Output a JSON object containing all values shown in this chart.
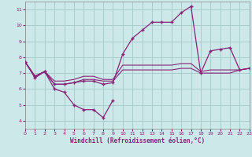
{
  "bg_color": "#cce8e8",
  "grid_color": "#aacccc",
  "line_color": "#882277",
  "xlabel": "Windchill (Refroidissement éolien,°C)",
  "xlim": [
    0,
    23
  ],
  "ylim": [
    3.5,
    11.5
  ],
  "xticks": [
    0,
    1,
    2,
    3,
    4,
    5,
    6,
    7,
    8,
    9,
    10,
    11,
    12,
    13,
    14,
    15,
    16,
    17,
    18,
    19,
    20,
    21,
    22,
    23
  ],
  "yticks": [
    4,
    5,
    6,
    7,
    8,
    9,
    10,
    11
  ],
  "s1_x": [
    0,
    1,
    2,
    3,
    4,
    5,
    6,
    7,
    8,
    9
  ],
  "s1_y": [
    7.7,
    6.7,
    7.1,
    6.0,
    5.8,
    5.0,
    4.7,
    4.7,
    4.2,
    5.3
  ],
  "s2_x": [
    0,
    1,
    2,
    3,
    4,
    5,
    6,
    7,
    8,
    9,
    10,
    11,
    12,
    13,
    14,
    15,
    16,
    17,
    18,
    19,
    20,
    21,
    22,
    23
  ],
  "s2_y": [
    7.7,
    6.8,
    7.1,
    6.3,
    6.3,
    6.4,
    6.5,
    6.5,
    6.3,
    6.4,
    8.2,
    9.2,
    9.7,
    10.2,
    10.2,
    10.2,
    10.8,
    11.2,
    7.0,
    8.4,
    8.5,
    8.6,
    7.2,
    7.3
  ],
  "s3_x": [
    0,
    1,
    2,
    3,
    4,
    5,
    6,
    7,
    8,
    9,
    10,
    11,
    12,
    13,
    14,
    15,
    16,
    17,
    18,
    19,
    20,
    21,
    22,
    23
  ],
  "s3_y": [
    7.7,
    6.8,
    7.1,
    6.3,
    6.3,
    6.4,
    6.6,
    6.6,
    6.5,
    6.5,
    7.2,
    7.2,
    7.2,
    7.2,
    7.2,
    7.2,
    7.3,
    7.3,
    7.0,
    7.0,
    7.0,
    7.0,
    7.2,
    7.3
  ],
  "s4_x": [
    0,
    1,
    2,
    3,
    4,
    5,
    6,
    7,
    8,
    9,
    10,
    11,
    12,
    13,
    14,
    15,
    16,
    17,
    18,
    19,
    20,
    21,
    22,
    23
  ],
  "s4_y": [
    7.7,
    6.8,
    7.1,
    6.5,
    6.5,
    6.6,
    6.8,
    6.8,
    6.6,
    6.6,
    7.5,
    7.5,
    7.5,
    7.5,
    7.5,
    7.5,
    7.6,
    7.6,
    7.1,
    7.2,
    7.2,
    7.2,
    7.2,
    7.3
  ]
}
